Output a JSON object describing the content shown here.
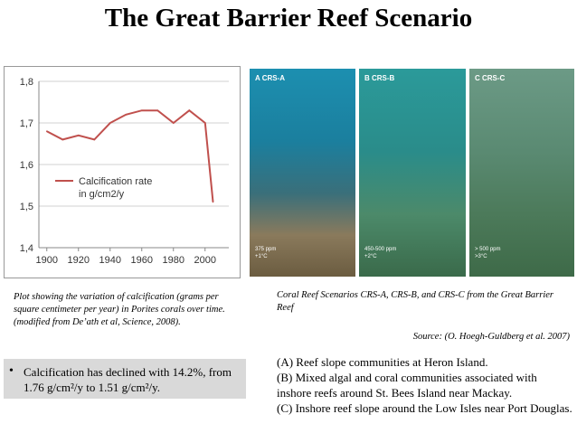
{
  "title": "The Great Barrier Reef  Scenario",
  "chart_data": {
    "type": "line",
    "x": [
      1900,
      1910,
      1920,
      1930,
      1940,
      1950,
      1960,
      1970,
      1980,
      1990,
      2000,
      2005
    ],
    "series": [
      {
        "name": "Calcification rate in g/cm2/y",
        "values": [
          1.68,
          1.66,
          1.67,
          1.66,
          1.7,
          1.72,
          1.73,
          1.73,
          1.7,
          1.73,
          1.7,
          1.51
        ]
      }
    ],
    "legend_line1": "Calcification rate",
    "legend_line2": "in g/cm2/y",
    "xticks": [
      "1900",
      "1920",
      "1940",
      "1960",
      "1980",
      "2000"
    ],
    "yticks": [
      "1,8",
      "1,7",
      "1,6",
      "1,5",
      "1,4"
    ],
    "xlim": [
      1895,
      2015
    ],
    "ylim": [
      1.4,
      1.8
    ],
    "grid": "horizontal",
    "legend_position": "middle-left",
    "line_color": "#c0504d"
  },
  "photos": [
    {
      "label": "A  CRS-A",
      "ppm": "375 ppm\n+1°C"
    },
    {
      "label": "B  CRS-B",
      "ppm": "450-500 ppm\n+2°C"
    },
    {
      "label": "C  CRS-C",
      "ppm": "> 500 ppm\n>3°C"
    }
  ],
  "caption_left": "Plot showing the variation of calcification (grams per square centimeter per year) in Porites corals over time. (modified from De’ath et al, Science, 2008).",
  "caption_right": "Coral Reef Scenarios CRS-A, CRS-B, and CRS-C from the Great Barrier Reef",
  "source": "Source: (O. Hoegh-Guldberg et al. 2007)",
  "bullet": {
    "dot": "•",
    "text": "Calcification has declined with 14.2%, from 1.76 g/cm²/y to 1.51 g/cm²/y."
  },
  "notes": [
    "(A) Reef slope communities at Heron Island.",
    "(B) Mixed algal and coral communities associated with inshore reefs around St. Bees Island near Mackay.",
    "(C) Inshore reef slope around the Low Isles near Port Douglas."
  ]
}
